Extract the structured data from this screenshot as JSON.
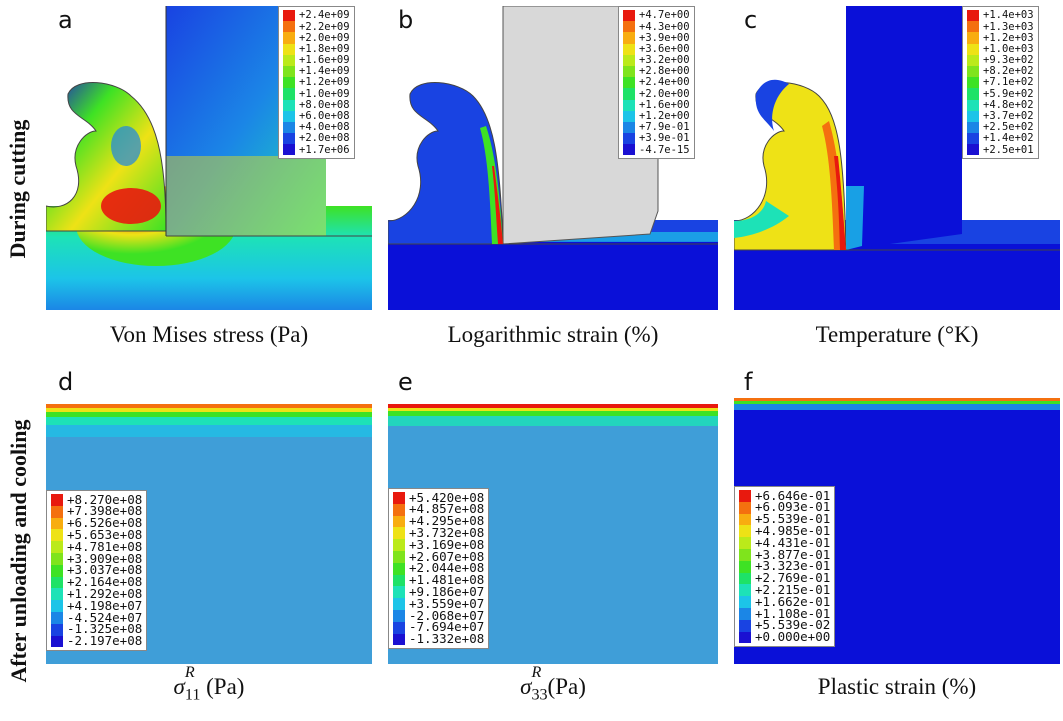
{
  "row_labels": {
    "top": "During cutting",
    "bottom": "After unloading and cooling"
  },
  "panels": [
    {
      "letter": "a",
      "caption": "Von Mises stress (Pa)",
      "legend": [
        "+2.4e+09",
        "+2.2e+09",
        "+2.0e+09",
        "+1.8e+09",
        "+1.6e+09",
        "+1.4e+09",
        "+1.2e+09",
        "+1.0e+09",
        "+8.0e+08",
        "+6.0e+08",
        "+4.0e+08",
        "+2.0e+08",
        "+1.7e+06"
      ]
    },
    {
      "letter": "b",
      "caption": "Logarithmic strain (%)",
      "legend": [
        "+4.7e+00",
        "+4.3e+00",
        "+3.9e+00",
        "+3.6e+00",
        "+3.2e+00",
        "+2.8e+00",
        "+2.4e+00",
        "+2.0e+00",
        "+1.6e+00",
        "+1.2e+00",
        "+7.9e-01",
        "+3.9e-01",
        "-4.7e-15"
      ]
    },
    {
      "letter": "c",
      "caption": "Temperature (°K)",
      "legend": [
        "+1.4e+03",
        "+1.3e+03",
        "+1.2e+03",
        "+1.0e+03",
        "+9.3e+02",
        "+8.2e+02",
        "+7.1e+02",
        "+5.9e+02",
        "+4.8e+02",
        "+3.7e+02",
        "+2.5e+02",
        "+1.4e+02",
        "+2.5e+01"
      ]
    },
    {
      "letter": "d",
      "caption_sym": "σ",
      "caption_sup": "R",
      "caption_sub": "11",
      "caption_unit": "(Pa)",
      "legend": [
        "+8.270e+08",
        "+7.398e+08",
        "+6.526e+08",
        "+5.653e+08",
        "+4.781e+08",
        "+3.909e+08",
        "+3.037e+08",
        "+2.164e+08",
        "+1.292e+08",
        "+4.198e+07",
        "-4.524e+07",
        "-1.325e+08",
        "-2.197e+08"
      ]
    },
    {
      "letter": "e",
      "caption_sym": "σ",
      "caption_sup": "R",
      "caption_sub": "33",
      "caption_unit": "(Pa)",
      "legend": [
        "+5.420e+08",
        "+4.857e+08",
        "+4.295e+08",
        "+3.732e+08",
        "+3.169e+08",
        "+2.607e+08",
        "+2.044e+08",
        "+1.481e+08",
        "+9.186e+07",
        "+3.559e+07",
        "-2.068e+07",
        "-7.694e+07",
        "-1.332e+08"
      ]
    },
    {
      "letter": "f",
      "caption": "Plastic strain (%)",
      "legend": [
        "+6.646e-01",
        "+6.093e-01",
        "+5.539e-01",
        "+4.985e-01",
        "+4.431e-01",
        "+3.877e-01",
        "+3.323e-01",
        "+2.769e-01",
        "+2.215e-01",
        "+1.662e-01",
        "+1.108e-01",
        "+5.539e-02",
        "+0.000e+00"
      ]
    }
  ],
  "colors": {
    "scale": [
      "#e8190e",
      "#f4700f",
      "#f8ad10",
      "#eee216",
      "#bbea1a",
      "#7fe41c",
      "#3ee224",
      "#1ee267",
      "#1de2b7",
      "#1cc4e8",
      "#1b86e6",
      "#1943e2",
      "#1a10d2"
    ],
    "deep_blue": "#0a10d8",
    "field_blue": "#3f9ed8",
    "tool_gray": "#d8d8d8"
  }
}
